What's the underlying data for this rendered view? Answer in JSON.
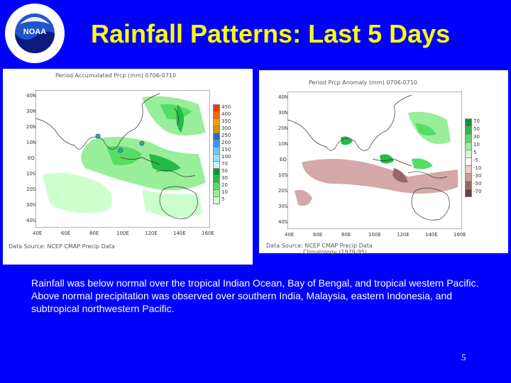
{
  "slide": {
    "title": "Rainfall Patterns: Last 5 Days",
    "body": "Rainfall was below normal over the tropical Indian Ocean, Bay of Bengal, and tropical western Pacific. Above normal precipitation was observed over southern India, Malaysia, eastern Indonesia, and subtropical northwestern Pacific.",
    "page_number": "5"
  },
  "logo": {
    "name": "NOAA",
    "ring_text": "NATIONAL OCEANIC AND ATMOSPHERIC ADMINISTRATION",
    "bottom_text": "U.S. DEPARTMENT OF COMMERCE"
  },
  "panel_left": {
    "title": "Period Accumulated Prcp (mm) 0706-0710",
    "source": "Data Source: NCEP CMAP Precip Data",
    "lat_labels": [
      "40N",
      "30N",
      "20N",
      "10N",
      "EQ",
      "10S",
      "20S",
      "30S",
      "40S"
    ],
    "lon_labels": [
      "40E",
      "60E",
      "80E",
      "100E",
      "120E",
      "140E",
      "160E"
    ],
    "legend": [
      "450",
      "400",
      "350",
      "300",
      "250",
      "200",
      "150",
      "100",
      "70",
      "50",
      "30",
      "20",
      "10",
      "5"
    ],
    "legend_colors": [
      "#ff3300",
      "#ff6600",
      "#ff9900",
      "#cc9900",
      "#3366cc",
      "#3399ff",
      "#66ccff",
      "#99ddff",
      "#ccf0ff",
      "#009933",
      "#22bb44",
      "#55dd66",
      "#99ee99",
      "#ccffcc"
    ]
  },
  "panel_right": {
    "title": "Period Prcp Anomaly (mm) 0706-0710",
    "source": "Data Source: NCEP CMAP Precip Data",
    "source2": "Climatology (1979-95)",
    "lat_labels": [
      "40N",
      "30N",
      "20N",
      "10N",
      "EQ",
      "10S",
      "20S",
      "30S",
      "40S"
    ],
    "lon_labels": [
      "40E",
      "60E",
      "80E",
      "100E",
      "120E",
      "140E",
      "160E"
    ],
    "legend": [
      "70",
      "50",
      "30",
      "10",
      "5",
      "-5",
      "-10",
      "-30",
      "-50",
      "-70"
    ],
    "legend_colors": [
      "#009933",
      "#22bb44",
      "#55dd66",
      "#99ee99",
      "#ccffcc",
      "#ffffff",
      "#e8cccc",
      "#cc9999",
      "#996666",
      "#664444"
    ]
  }
}
